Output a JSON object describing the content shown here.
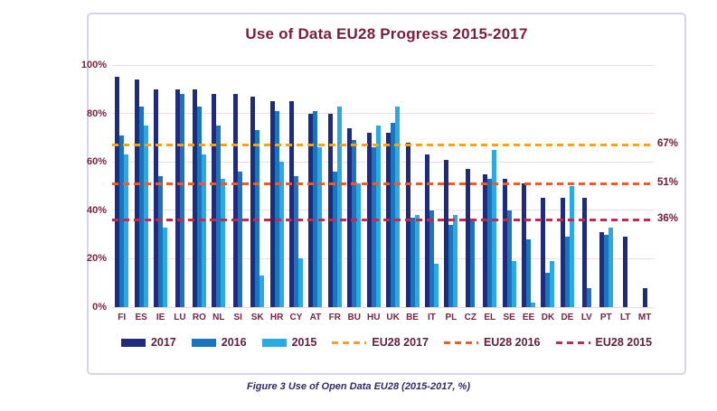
{
  "title": "Use of Data EU28 Progress 2015-2017",
  "caption": "Figure 3 Use of Open Data EU28 (2015-2017, %)",
  "colors": {
    "series_2017": "#1f2c7b",
    "series_2016": "#1b75bc",
    "series_2015": "#29abe2",
    "eu28_2017": "#f9a11b",
    "eu28_2016": "#f05a28",
    "eu28_2015": "#c02a52",
    "title_text": "#7a1c3c",
    "axis_text": "#7a2340",
    "gridline": "#f4dbe2",
    "box_border": "#d9d2e8",
    "caption_text": "#2e2a68"
  },
  "chart_data": {
    "type": "bar",
    "title": "Use of Data EU28 Progress 2015-2017",
    "categories": [
      "FI",
      "ES",
      "IE",
      "LU",
      "RO",
      "NL",
      "SI",
      "SK",
      "HR",
      "CY",
      "AT",
      "FR",
      "BU",
      "HU",
      "UK",
      "BE",
      "IT",
      "PL",
      "CZ",
      "EL",
      "SE",
      "EE",
      "DK",
      "DE",
      "LV",
      "PT",
      "LT",
      "MT"
    ],
    "series": [
      {
        "name": "2017",
        "color_key": "series_2017",
        "values": [
          95,
          94,
          90,
          90,
          90,
          88,
          88,
          87,
          85,
          85,
          80,
          80,
          74,
          72,
          72,
          68,
          63,
          61,
          57,
          55,
          53,
          51,
          45,
          45,
          45,
          31,
          29,
          8
        ]
      },
      {
        "name": "2016",
        "color_key": "series_2016",
        "values": [
          71,
          83,
          54,
          88,
          83,
          75,
          56,
          73,
          81,
          54,
          81,
          56,
          69,
          66,
          76,
          37,
          40,
          34,
          36,
          53,
          40,
          28,
          14,
          29,
          8,
          30,
          null,
          null
        ]
      },
      {
        "name": "2015",
        "color_key": "series_2015",
        "values": [
          63,
          75,
          33,
          null,
          63,
          53,
          null,
          13,
          60,
          20,
          66,
          83,
          51,
          75,
          83,
          38,
          18,
          38,
          null,
          65,
          19,
          2,
          19,
          50,
          null,
          33,
          null,
          null
        ]
      }
    ],
    "reference_lines": [
      {
        "name": "EU28 2017",
        "value": 67,
        "label": "67%",
        "color_key": "eu28_2017"
      },
      {
        "name": "EU28 2016",
        "value": 51,
        "label": "51%",
        "color_key": "eu28_2016"
      },
      {
        "name": "EU28 2015",
        "value": 36,
        "label": "36%",
        "color_key": "eu28_2015"
      }
    ],
    "xlabel": "",
    "ylabel": "",
    "ylim": [
      0,
      100
    ],
    "yticks": [
      {
        "value": 0,
        "label": "0%"
      },
      {
        "value": 20,
        "label": "20%"
      },
      {
        "value": 40,
        "label": "40%"
      },
      {
        "value": 60,
        "label": "60%"
      },
      {
        "value": 80,
        "label": "80%"
      },
      {
        "value": 100,
        "label": "100%"
      }
    ],
    "grid": true,
    "legend_position": "bottom"
  },
  "legend": {
    "items": [
      {
        "label": "2017",
        "swatch": "solid",
        "color_key": "series_2017"
      },
      {
        "label": "2016",
        "swatch": "solid",
        "color_key": "series_2016"
      },
      {
        "label": "2015",
        "swatch": "solid",
        "color_key": "series_2015"
      },
      {
        "label": "EU28 2017",
        "swatch": "dashed",
        "color_key": "eu28_2017"
      },
      {
        "label": "EU28 2016",
        "swatch": "dashed",
        "color_key": "eu28_2016"
      },
      {
        "label": "EU28 2015",
        "swatch": "dashed",
        "color_key": "eu28_2015"
      }
    ]
  }
}
